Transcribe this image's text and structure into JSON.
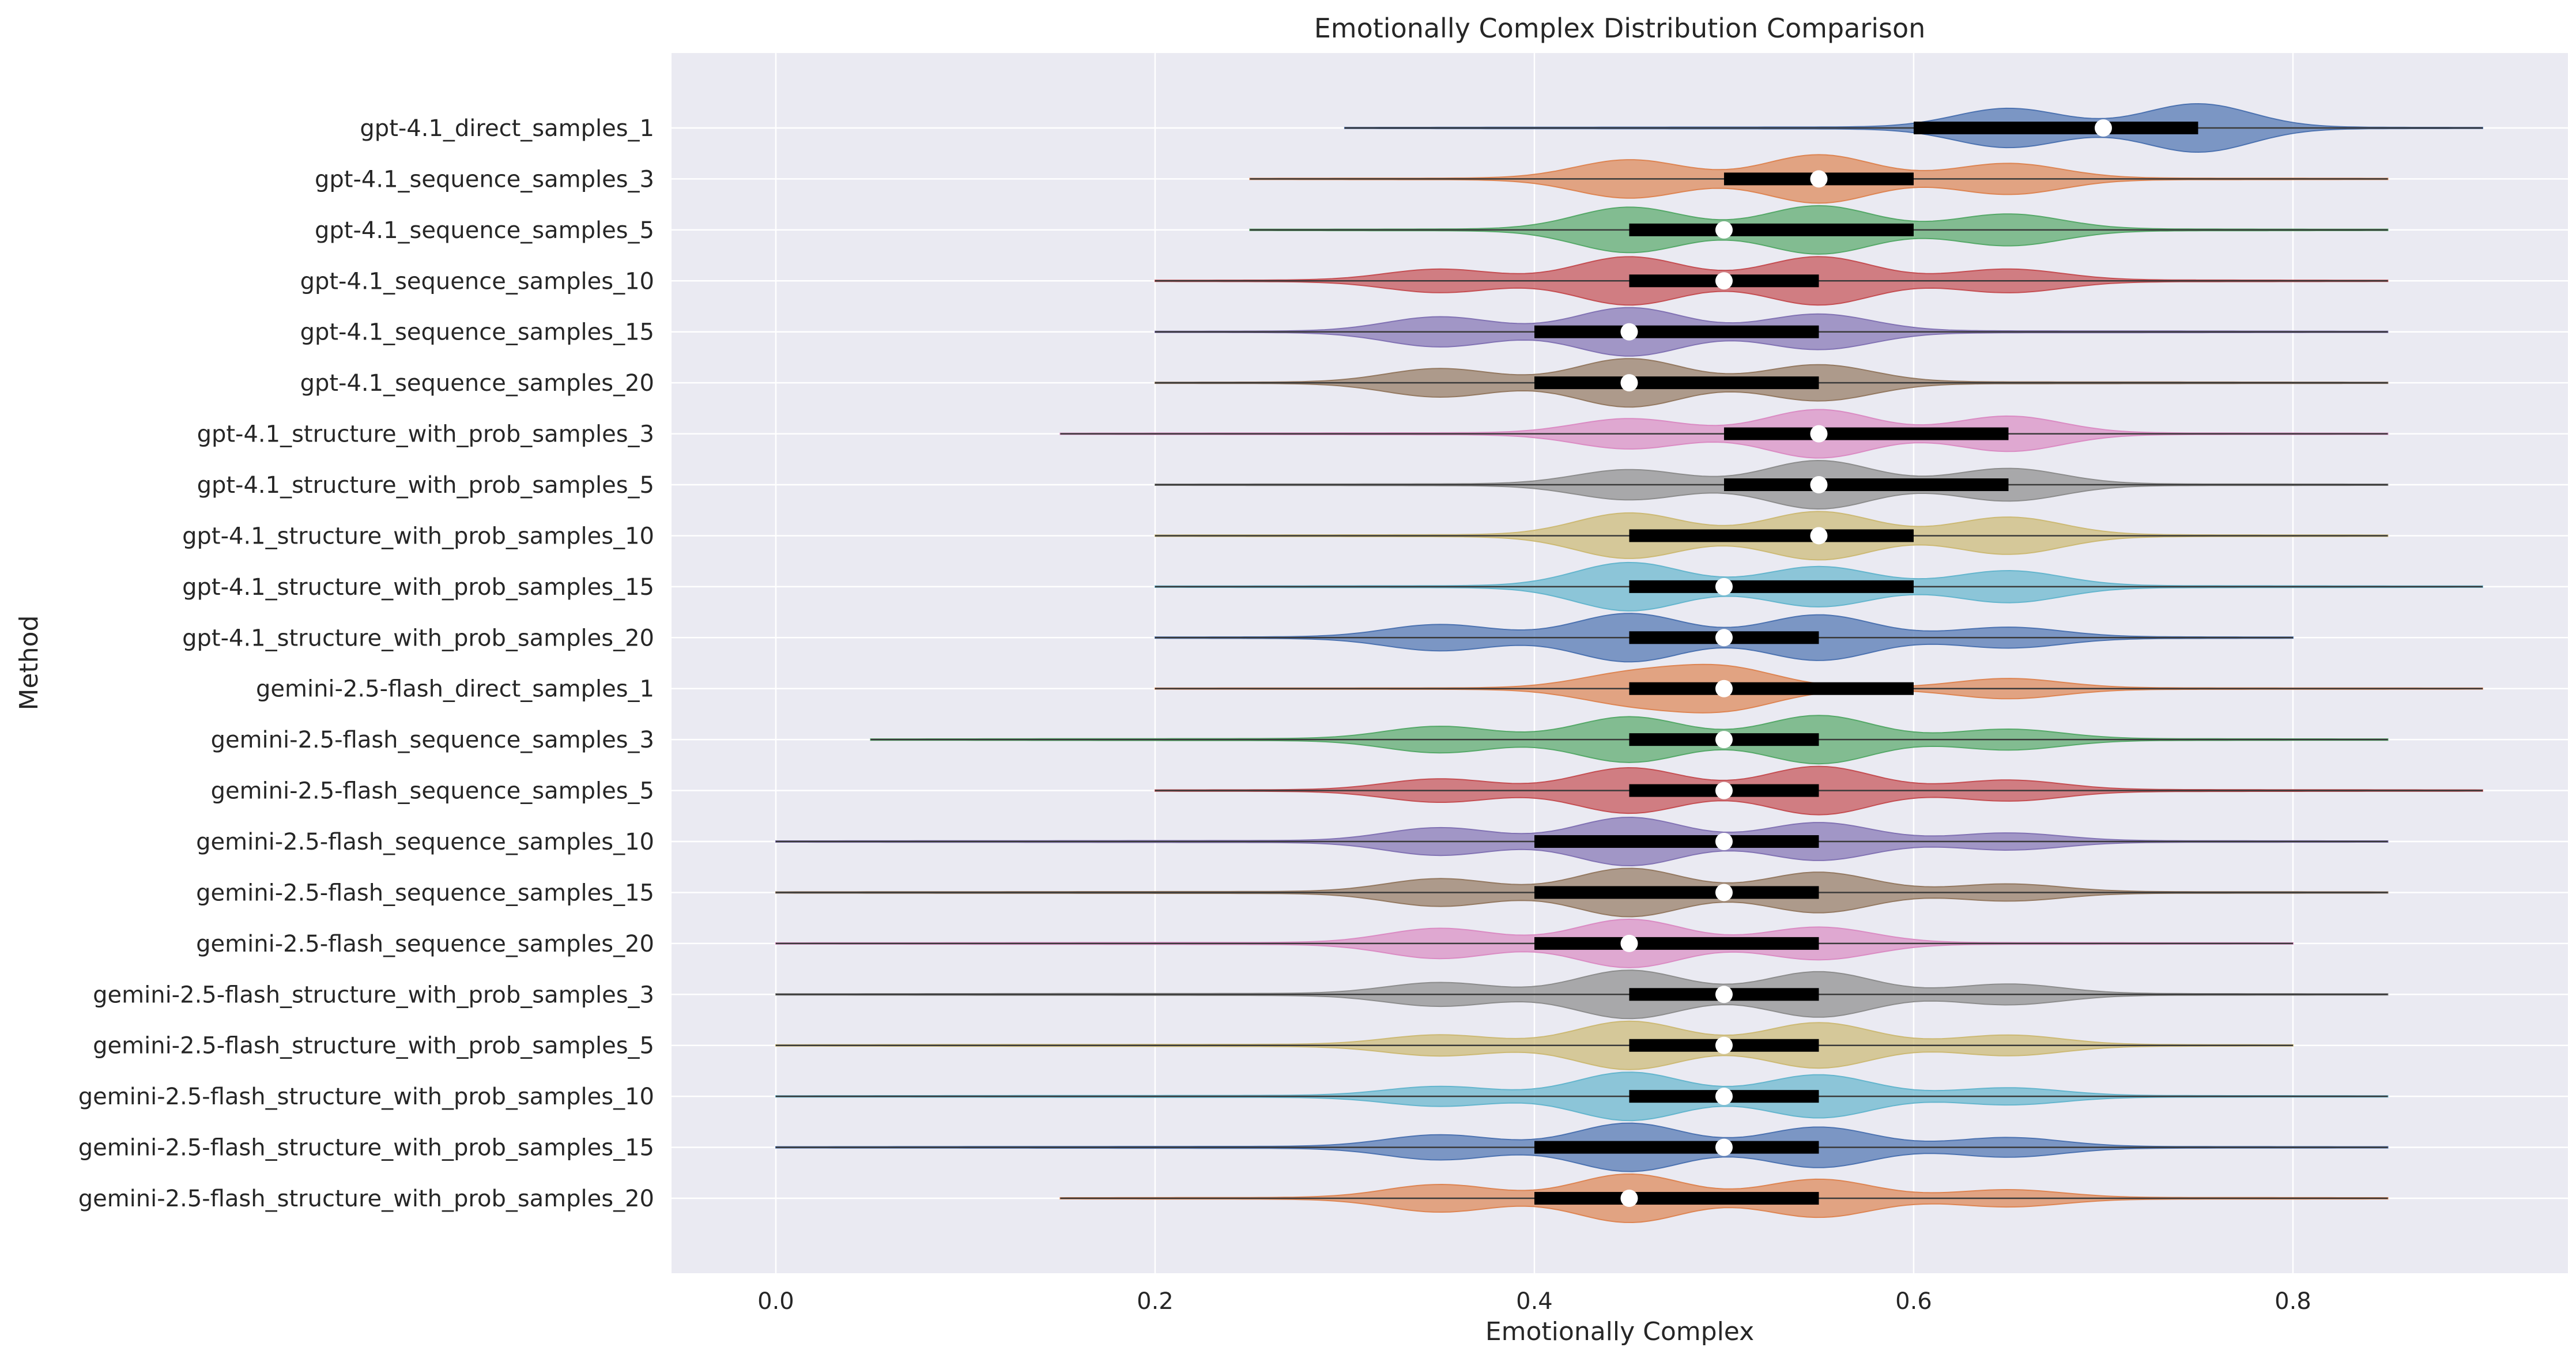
{
  "chart_data": {
    "type": "violin",
    "orientation": "horizontal",
    "title": "Emotionally Complex Distribution Comparison",
    "xlabel": "Emotionally Complex",
    "ylabel": "Method",
    "xlim": [
      -0.055,
      0.945
    ],
    "xticks": [
      0.0,
      0.2,
      0.4,
      0.6,
      0.8
    ],
    "xtick_labels": [
      "0.0",
      "0.2",
      "0.4",
      "0.6",
      "0.8"
    ],
    "grid": true,
    "colors": [
      "#4c72b0",
      "#dd8452",
      "#55a868",
      "#c44e52",
      "#8172b3",
      "#937860",
      "#da8bc3",
      "#8c8c8c",
      "#ccb974",
      "#64b5cd"
    ],
    "series": [
      {
        "name": "gpt-4.1_direct_samples_1",
        "min": 0.3,
        "max": 0.9,
        "q1": 0.6,
        "median": 0.7,
        "q3": 0.75,
        "modes": [
          [
            0.65,
            0.8
          ],
          [
            0.75,
            1.0
          ]
        ]
      },
      {
        "name": "gpt-4.1_sequence_samples_3",
        "min": 0.25,
        "max": 0.85,
        "q1": 0.5,
        "median": 0.55,
        "q3": 0.6,
        "modes": [
          [
            0.45,
            0.75
          ],
          [
            0.55,
            0.95
          ],
          [
            0.65,
            0.6
          ]
        ]
      },
      {
        "name": "gpt-4.1_sequence_samples_5",
        "min": 0.25,
        "max": 0.85,
        "q1": 0.45,
        "median": 0.5,
        "q3": 0.6,
        "modes": [
          [
            0.45,
            0.8
          ],
          [
            0.55,
            0.85
          ],
          [
            0.65,
            0.55
          ]
        ]
      },
      {
        "name": "gpt-4.1_sequence_samples_10",
        "min": 0.2,
        "max": 0.85,
        "q1": 0.45,
        "median": 0.5,
        "q3": 0.55,
        "modes": [
          [
            0.35,
            0.4
          ],
          [
            0.45,
            0.85
          ],
          [
            0.55,
            0.85
          ],
          [
            0.65,
            0.4
          ]
        ]
      },
      {
        "name": "gpt-4.1_sequence_samples_15",
        "min": 0.2,
        "max": 0.85,
        "q1": 0.4,
        "median": 0.45,
        "q3": 0.55,
        "modes": [
          [
            0.35,
            0.55
          ],
          [
            0.45,
            0.9
          ],
          [
            0.55,
            0.65
          ]
        ]
      },
      {
        "name": "gpt-4.1_sequence_samples_20",
        "min": 0.2,
        "max": 0.85,
        "q1": 0.4,
        "median": 0.45,
        "q3": 0.55,
        "modes": [
          [
            0.35,
            0.55
          ],
          [
            0.45,
            0.95
          ],
          [
            0.55,
            0.7
          ]
        ]
      },
      {
        "name": "gpt-4.1_structure_with_prob_samples_3",
        "min": 0.15,
        "max": 0.85,
        "q1": 0.5,
        "median": 0.55,
        "q3": 0.65,
        "modes": [
          [
            0.45,
            0.55
          ],
          [
            0.55,
            0.9
          ],
          [
            0.65,
            0.65
          ]
        ]
      },
      {
        "name": "gpt-4.1_structure_with_prob_samples_5",
        "min": 0.2,
        "max": 0.85,
        "q1": 0.5,
        "median": 0.55,
        "q3": 0.65,
        "modes": [
          [
            0.45,
            0.55
          ],
          [
            0.55,
            0.9
          ],
          [
            0.65,
            0.6
          ]
        ]
      },
      {
        "name": "gpt-4.1_structure_with_prob_samples_10",
        "min": 0.2,
        "max": 0.85,
        "q1": 0.45,
        "median": 0.55,
        "q3": 0.6,
        "modes": [
          [
            0.45,
            0.8
          ],
          [
            0.55,
            0.85
          ],
          [
            0.65,
            0.65
          ]
        ]
      },
      {
        "name": "gpt-4.1_structure_with_prob_samples_15",
        "min": 0.2,
        "max": 0.9,
        "q1": 0.45,
        "median": 0.5,
        "q3": 0.6,
        "modes": [
          [
            0.45,
            0.85
          ],
          [
            0.55,
            0.7
          ],
          [
            0.65,
            0.55
          ]
        ]
      },
      {
        "name": "gpt-4.1_structure_with_prob_samples_20",
        "min": 0.2,
        "max": 0.8,
        "q1": 0.45,
        "median": 0.5,
        "q3": 0.55,
        "modes": [
          [
            0.35,
            0.45
          ],
          [
            0.45,
            0.85
          ],
          [
            0.55,
            0.8
          ],
          [
            0.65,
            0.35
          ]
        ]
      },
      {
        "name": "gemini-2.5-flash_direct_samples_1",
        "min": 0.2,
        "max": 0.9,
        "q1": 0.45,
        "median": 0.5,
        "q3": 0.6,
        "modes": [
          [
            0.45,
            0.65
          ],
          [
            0.5,
            0.95
          ],
          [
            0.65,
            0.45
          ]
        ]
      },
      {
        "name": "gemini-2.5-flash_sequence_samples_3",
        "min": 0.05,
        "max": 0.85,
        "q1": 0.45,
        "median": 0.5,
        "q3": 0.55,
        "modes": [
          [
            0.35,
            0.45
          ],
          [
            0.45,
            0.8
          ],
          [
            0.55,
            0.85
          ],
          [
            0.65,
            0.35
          ]
        ]
      },
      {
        "name": "gemini-2.5-flash_sequence_samples_5",
        "min": 0.2,
        "max": 0.9,
        "q1": 0.45,
        "median": 0.5,
        "q3": 0.55,
        "modes": [
          [
            0.35,
            0.4
          ],
          [
            0.45,
            0.8
          ],
          [
            0.55,
            0.85
          ],
          [
            0.65,
            0.35
          ]
        ]
      },
      {
        "name": "gemini-2.5-flash_sequence_samples_10",
        "min": 0.0,
        "max": 0.85,
        "q1": 0.4,
        "median": 0.5,
        "q3": 0.55,
        "modes": [
          [
            0.35,
            0.5
          ],
          [
            0.45,
            0.9
          ],
          [
            0.55,
            0.7
          ],
          [
            0.65,
            0.3
          ]
        ]
      },
      {
        "name": "gemini-2.5-flash_sequence_samples_15",
        "min": 0.0,
        "max": 0.85,
        "q1": 0.4,
        "median": 0.5,
        "q3": 0.55,
        "modes": [
          [
            0.35,
            0.5
          ],
          [
            0.45,
            0.9
          ],
          [
            0.55,
            0.75
          ],
          [
            0.65,
            0.3
          ]
        ]
      },
      {
        "name": "gemini-2.5-flash_sequence_samples_20",
        "min": 0.0,
        "max": 0.8,
        "q1": 0.4,
        "median": 0.45,
        "q3": 0.55,
        "modes": [
          [
            0.35,
            0.55
          ],
          [
            0.45,
            0.9
          ],
          [
            0.55,
            0.6
          ]
        ]
      },
      {
        "name": "gemini-2.5-flash_structure_with_prob_samples_3",
        "min": 0.0,
        "max": 0.85,
        "q1": 0.45,
        "median": 0.5,
        "q3": 0.55,
        "modes": [
          [
            0.35,
            0.4
          ],
          [
            0.45,
            0.85
          ],
          [
            0.55,
            0.8
          ],
          [
            0.65,
            0.35
          ]
        ]
      },
      {
        "name": "gemini-2.5-flash_structure_with_prob_samples_5",
        "min": 0.0,
        "max": 0.8,
        "q1": 0.45,
        "median": 0.5,
        "q3": 0.55,
        "modes": [
          [
            0.35,
            0.35
          ],
          [
            0.45,
            0.85
          ],
          [
            0.55,
            0.8
          ],
          [
            0.65,
            0.35
          ]
        ]
      },
      {
        "name": "gemini-2.5-flash_structure_with_prob_samples_10",
        "min": 0.0,
        "max": 0.85,
        "q1": 0.45,
        "median": 0.5,
        "q3": 0.55,
        "modes": [
          [
            0.35,
            0.35
          ],
          [
            0.45,
            0.9
          ],
          [
            0.55,
            0.8
          ],
          [
            0.65,
            0.3
          ]
        ]
      },
      {
        "name": "gemini-2.5-flash_structure_with_prob_samples_15",
        "min": 0.0,
        "max": 0.85,
        "q1": 0.4,
        "median": 0.5,
        "q3": 0.55,
        "modes": [
          [
            0.35,
            0.45
          ],
          [
            0.45,
            0.9
          ],
          [
            0.55,
            0.75
          ],
          [
            0.65,
            0.35
          ]
        ]
      },
      {
        "name": "gemini-2.5-flash_structure_with_prob_samples_20",
        "min": 0.15,
        "max": 0.85,
        "q1": 0.4,
        "median": 0.45,
        "q3": 0.55,
        "modes": [
          [
            0.35,
            0.5
          ],
          [
            0.45,
            0.9
          ],
          [
            0.55,
            0.7
          ],
          [
            0.65,
            0.3
          ]
        ]
      }
    ]
  }
}
